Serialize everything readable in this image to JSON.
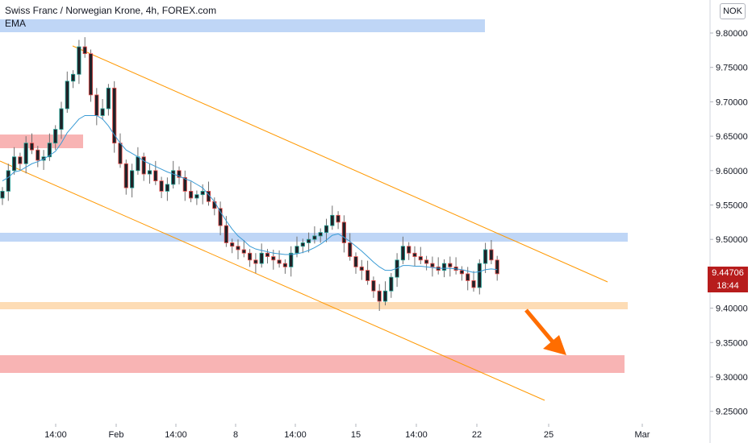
{
  "header": {
    "title": "Swiss Franc / Norwegian Krone, 4h, FOREX.com",
    "indicator": "EMA",
    "currency": "NOK"
  },
  "price_label": "9.44706",
  "timer_label": "18:44",
  "colors": {
    "up": "#26a69a",
    "down": "#ef5350",
    "candle_body": "#202228",
    "wick": "#707070",
    "ema": "#3a9bd5",
    "channel": "#ff9800",
    "zone_blue": "#bfd6f6",
    "zone_red": "#f8b4b4",
    "zone_orange": "#fddcb5",
    "arrow": "#ff6d00",
    "label": "#b71c1c"
  },
  "chart_data": {
    "type": "candlestick",
    "title": "Swiss Franc / Norwegian Krone, 4h, FOREX.com",
    "xlabel": "",
    "ylabel": "",
    "ylim": [
      9.225,
      9.82
    ],
    "y_ticks": [
      "9.80000",
      "9.75000",
      "9.70000",
      "9.65000",
      "9.60000",
      "9.55000",
      "9.50000",
      "9.45000",
      "9.40000",
      "9.35000",
      "9.30000",
      "9.25000"
    ],
    "x_ticks": [
      "14:00",
      "Feb",
      "14:00",
      "8",
      "14:00",
      "15",
      "14:00",
      "22",
      "25",
      "Mar"
    ],
    "last_price": 9.44706,
    "grid": false,
    "closes": [
      9.57,
      9.6,
      9.62,
      9.61,
      9.64,
      9.63,
      9.615,
      9.62,
      9.64,
      9.66,
      9.69,
      9.73,
      9.74,
      9.78,
      9.77,
      9.71,
      9.68,
      9.69,
      9.72,
      9.64,
      9.61,
      9.575,
      9.6,
      9.62,
      9.595,
      9.6,
      9.585,
      9.57,
      9.58,
      9.6,
      9.59,
      9.57,
      9.56,
      9.565,
      9.57,
      9.555,
      9.545,
      9.52,
      9.495,
      9.49,
      9.485,
      9.48,
      9.47,
      9.465,
      9.48,
      9.475,
      9.47,
      9.465,
      9.46,
      9.48,
      9.49,
      9.495,
      9.5,
      9.505,
      9.51,
      9.52,
      9.535,
      9.525,
      9.495,
      9.475,
      9.46,
      9.455,
      9.44,
      9.425,
      9.41,
      9.425,
      9.445,
      9.47,
      9.49,
      9.48,
      9.475,
      9.47,
      9.465,
      9.46,
      9.455,
      9.465,
      9.46,
      9.455,
      9.45,
      9.44,
      9.43,
      9.465,
      9.485,
      9.47,
      9.45
    ],
    "ema": [
      9.585,
      9.59,
      9.598,
      9.6,
      9.605,
      9.61,
      9.613,
      9.617,
      9.622,
      9.628,
      9.64,
      9.655,
      9.665,
      9.675,
      9.68,
      9.68,
      9.68,
      9.675,
      9.665,
      9.652,
      9.64,
      9.63,
      9.625,
      9.62,
      9.614,
      9.61,
      9.606,
      9.602,
      9.598,
      9.595,
      9.592,
      9.588,
      9.585,
      9.58,
      9.575,
      9.565,
      9.555,
      9.54,
      9.527,
      9.515,
      9.505,
      9.498,
      9.49,
      9.486,
      9.484,
      9.482,
      9.48,
      9.479,
      9.478,
      9.478,
      9.479,
      9.481,
      9.484,
      9.488,
      9.493,
      9.499,
      9.506,
      9.508,
      9.503,
      9.497,
      9.49,
      9.483,
      9.475,
      9.467,
      9.46,
      9.455,
      9.455,
      9.458,
      9.462,
      9.462,
      9.461,
      9.461,
      9.46,
      9.459,
      9.458,
      9.458,
      9.458,
      9.457,
      9.456,
      9.454,
      9.452,
      9.453,
      9.456,
      9.457,
      9.456
    ]
  }
}
